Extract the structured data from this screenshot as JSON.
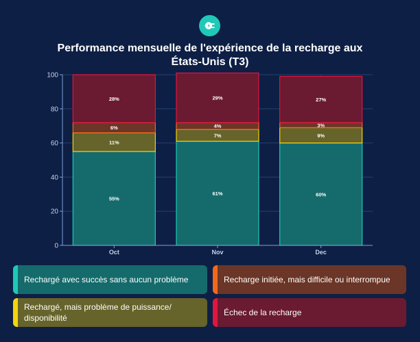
{
  "chart_data": {
    "type": "bar",
    "stacked": true,
    "title": "Performance mensuelle de l'expérience de la recharge aux États-Unis (T3)",
    "categories": [
      "Oct",
      "Nov",
      "Dec"
    ],
    "ylim": [
      0,
      100
    ],
    "yticks": [
      0,
      20,
      40,
      60,
      80,
      100
    ],
    "grid": true,
    "legend_position": "bottom",
    "series": [
      {
        "name": "Rechargé avec succès sans aucun problème",
        "values": [
          55,
          61,
          60
        ],
        "labels": [
          "55%",
          "61%",
          "60%"
        ],
        "color": "#156b6b",
        "edge": "#1ec9b7"
      },
      {
        "name": "Rechargé, mais problème de puissance/ disponibilité",
        "values": [
          11,
          7,
          9
        ],
        "labels": [
          "11%",
          "7%",
          "9%"
        ],
        "color": "#66632b",
        "edge": "#f4d40c"
      },
      {
        "name": "Recharge initiée, mais difficile ou interrompue",
        "values": [
          6,
          4,
          3
        ],
        "labels": [
          "6%",
          "4%",
          "3%"
        ],
        "color": "#6b3627",
        "edge": "#f06a1c"
      },
      {
        "name": "Échec de la recharge",
        "values": [
          28,
          29,
          27
        ],
        "labels": [
          "28%",
          "29%",
          "27%"
        ],
        "color": "#6a1a31",
        "edge": "#e0163e"
      }
    ]
  },
  "colors": {
    "background": "#0e1f45",
    "brand": "#1fc9b8",
    "axis": "#7da0d8",
    "tick_text": "#c5d2ea"
  },
  "icons": {
    "logo": "ev-plug-icon"
  }
}
